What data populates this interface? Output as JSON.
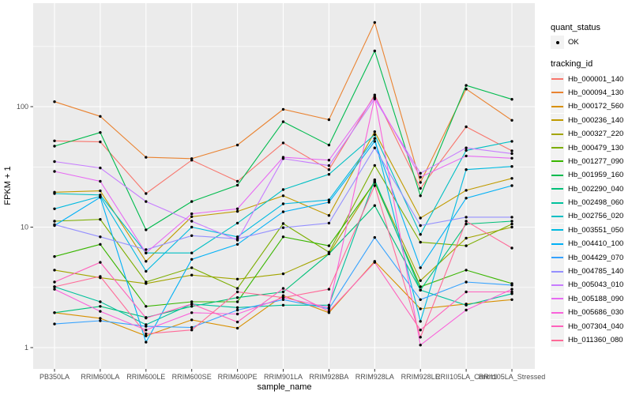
{
  "style": {
    "page_bg": "#FFFFFF",
    "panel_bg": "#EBEBEB",
    "grid_color": "#FFFFFF",
    "tick_color": "#333333",
    "axis_text_color": "#4D4D4D",
    "axis_title_color": "#000000",
    "legend_key_bg": "#F2F2F2",
    "point_color": "#000000"
  },
  "legend": {
    "quant_status": {
      "title": "quant_status",
      "items": [
        {
          "label": "OK",
          "marker": "filled-point"
        }
      ]
    },
    "tracking_id": {
      "title": "tracking_id",
      "items": [
        {
          "label": "Hb_000001_140",
          "color": "#F8766D"
        },
        {
          "label": "Hb_000094_130",
          "color": "#EA8331"
        },
        {
          "label": "Hb_000172_560",
          "color": "#D89000"
        },
        {
          "label": "Hb_000236_140",
          "color": "#C09B00"
        },
        {
          "label": "Hb_000327_220",
          "color": "#A3A500"
        },
        {
          "label": "Hb_000479_130",
          "color": "#7CAE00"
        },
        {
          "label": "Hb_001277_090",
          "color": "#39B600"
        },
        {
          "label": "Hb_001959_160",
          "color": "#00BB4E"
        },
        {
          "label": "Hb_002290_040",
          "color": "#00C079"
        },
        {
          "label": "Hb_002498_060",
          "color": "#00C19C"
        },
        {
          "label": "Hb_002756_020",
          "color": "#00BFC4"
        },
        {
          "label": "Hb_003551_050",
          "color": "#00BAE0"
        },
        {
          "label": "Hb_004410_100",
          "color": "#00B0F6"
        },
        {
          "label": "Hb_004429_070",
          "color": "#35A2FF"
        },
        {
          "label": "Hb_004785_140",
          "color": "#9590FF"
        },
        {
          "label": "Hb_005043_010",
          "color": "#C77CFF"
        },
        {
          "label": "Hb_005188_090",
          "color": "#E76BF3"
        },
        {
          "label": "Hb_005686_030",
          "color": "#FA62DB"
        },
        {
          "label": "Hb_007304_040",
          "color": "#FF62BC"
        },
        {
          "label": "Hb_011360_080",
          "color": "#FF6A98"
        }
      ]
    }
  },
  "chart_data": {
    "type": "line",
    "title": "",
    "xlabel": "sample_name",
    "ylabel": "FPKM + 1",
    "y_scale": "log10",
    "y_ticks": [
      1,
      10,
      100
    ],
    "y_minor_ticks": [
      3.162,
      31.62,
      316.2
    ],
    "ylim": [
      0.75,
      760
    ],
    "grid": "major+minor",
    "legend_position": "right",
    "point_marker": "small black filled circle (quant_status = OK)",
    "x_categories": [
      "PB350LA",
      "RRIM600LA",
      "RRIM600LE",
      "RRIM600SE",
      "RRIM600PE",
      "RRIM901LA",
      "RRIM928BA",
      "RRIM928LA",
      "RRIM928LE",
      "RRII105LA_Control",
      "RRII105LA_Stressed"
    ],
    "series": [
      {
        "name": "Hb_000001_140",
        "color": "#F8766D",
        "values": [
          52,
          51,
          19,
          36,
          24,
          50,
          30,
          125,
          21,
          68,
          43
        ]
      },
      {
        "name": "Hb_000094_130",
        "color": "#EA8331",
        "values": [
          110,
          83,
          38,
          37,
          48,
          95,
          78,
          500,
          23.5,
          140,
          77
        ]
      },
      {
        "name": "Hb_000172_560",
        "color": "#D89000",
        "values": [
          1.95,
          1.75,
          1.25,
          1.7,
          1.45,
          2.7,
          1.95,
          5.2,
          2.1,
          2.3,
          2.5
        ]
      },
      {
        "name": "Hb_000236_140",
        "color": "#C09B00",
        "values": [
          19.5,
          20,
          5.2,
          12.2,
          13.5,
          18.2,
          12.5,
          62,
          11.9,
          20.2,
          25.4
        ]
      },
      {
        "name": "Hb_000327_220",
        "color": "#A3A500",
        "values": [
          4.4,
          3.8,
          3.4,
          4.0,
          3.7,
          4.1,
          6.0,
          24,
          3.6,
          8.1,
          10.0
        ]
      },
      {
        "name": "Hb_000479_130",
        "color": "#7CAE00",
        "values": [
          11.2,
          11.6,
          3.5,
          4.6,
          3.1,
          10.7,
          6.2,
          32.5,
          7.5,
          7.0,
          10.6
        ]
      },
      {
        "name": "Hb_001277_090",
        "color": "#39B600",
        "values": [
          5.7,
          7.2,
          2.2,
          2.4,
          2.4,
          8.3,
          7.0,
          23.5,
          3.2,
          4.4,
          3.4
        ]
      },
      {
        "name": "Hb_001959_160",
        "color": "#00BB4E",
        "values": [
          47,
          61,
          9.5,
          16.3,
          22.3,
          75,
          48,
          290,
          18.2,
          150,
          115
        ]
      },
      {
        "name": "Hb_002290_040",
        "color": "#00C079",
        "values": [
          1.95,
          2.2,
          1.78,
          2.2,
          2.6,
          2.9,
          6.0,
          15.1,
          3.0,
          10.6,
          11.2
        ]
      },
      {
        "name": "Hb_002498_060",
        "color": "#00C19C",
        "values": [
          3.2,
          2.4,
          1.55,
          2.3,
          2.15,
          2.25,
          2.25,
          24.7,
          3.0,
          2.25,
          2.8
        ]
      },
      {
        "name": "Hb_002756_020",
        "color": "#00BFC4",
        "values": [
          19,
          18.5,
          6.1,
          6.1,
          10.8,
          20.5,
          27.4,
          58.5,
          8.7,
          43.3,
          51.5
        ]
      },
      {
        "name": "Hb_003551_050",
        "color": "#00BAE0",
        "values": [
          14.2,
          18,
          4.3,
          10.0,
          8.3,
          15.6,
          16.8,
          54.5,
          1.65,
          30,
          31.9
        ]
      },
      {
        "name": "Hb_004410_100",
        "color": "#00B0F6",
        "values": [
          10.3,
          17.7,
          1.11,
          5.4,
          7.2,
          13.4,
          16.1,
          51.5,
          4.6,
          17.4,
          22.1
        ]
      },
      {
        "name": "Hb_004429_070",
        "color": "#35A2FF",
        "values": [
          1.57,
          1.67,
          1.5,
          1.47,
          2.05,
          2.5,
          2.1,
          8.2,
          2.5,
          3.5,
          3.3
        ]
      },
      {
        "name": "Hb_004785_140",
        "color": "#9590FF",
        "values": [
          10.5,
          8.3,
          6.5,
          8.5,
          8.0,
          9.9,
          10.8,
          45.5,
          10.3,
          12.1,
          12.1
        ]
      },
      {
        "name": "Hb_005043_010",
        "color": "#C77CFF",
        "values": [
          35,
          31,
          16.3,
          11.2,
          7.8,
          37,
          32.4,
          116,
          28,
          45.5,
          40.8
        ]
      },
      {
        "name": "Hb_005188_090",
        "color": "#E76BF3",
        "values": [
          29,
          24,
          6.1,
          12.9,
          14.2,
          38,
          36,
          121,
          26,
          39,
          37.3
        ]
      },
      {
        "name": "Hb_005686_030",
        "color": "#FA62DB",
        "values": [
          3.05,
          2.0,
          1.4,
          1.95,
          1.9,
          2.6,
          2.15,
          119,
          1.05,
          2.05,
          3.05
        ]
      },
      {
        "name": "Hb_007304_040",
        "color": "#FF62BC",
        "values": [
          3.5,
          5.1,
          1.76,
          2.3,
          1.63,
          3.1,
          2.0,
          5.1,
          1.4,
          2.9,
          2.9
        ]
      },
      {
        "name": "Hb_011360_080",
        "color": "#FF6A98",
        "values": [
          3.2,
          3.9,
          1.3,
          1.4,
          2.9,
          2.6,
          3.05,
          22.1,
          1.22,
          11.2,
          6.7
        ]
      }
    ]
  }
}
